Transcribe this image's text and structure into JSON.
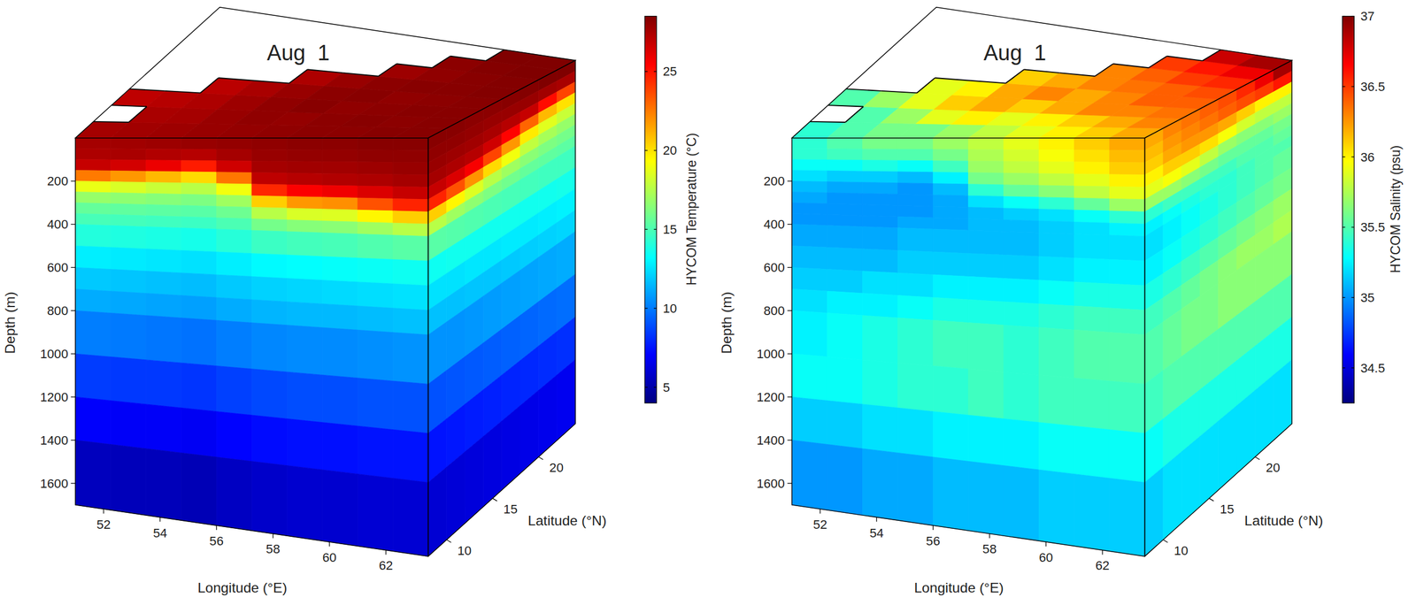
{
  "chart_data": [
    {
      "type": "cube_heatmap",
      "title": "Aug  1",
      "xlabel": "Longitude (°E)",
      "ylabel": "Latitude (°N)",
      "zlabel": "Depth (m)",
      "xlim": [
        51,
        63.5
      ],
      "xticks": [
        52,
        54,
        56,
        58,
        60,
        62
      ],
      "ylim": [
        8,
        24
      ],
      "yticks": [
        10,
        15,
        20
      ],
      "zlim": [
        0,
        1700
      ],
      "zticks": [
        200,
        400,
        600,
        800,
        1000,
        1200,
        1400,
        1600
      ],
      "lon_edges": [
        51,
        52.25,
        53.5,
        54.75,
        56,
        57.25,
        58.5,
        59.75,
        61,
        62.25,
        63.5
      ],
      "lat_edges": [
        8,
        10,
        12,
        14,
        16,
        18,
        20,
        22,
        24
      ],
      "depth_edges": [
        0,
        50,
        100,
        150,
        200,
        250,
        300,
        350,
        400,
        500,
        600,
        700,
        800,
        1000,
        1200,
        1400,
        1700
      ],
      "surface": [
        [
          27.6,
          27.7,
          27.8,
          27.9,
          28.0,
          28.1,
          28.2,
          28.2,
          28.3,
          28.3
        ],
        [
          null,
          27.5,
          27.6,
          27.9,
          28.1,
          28.0,
          28.2,
          28.3,
          28.2,
          28.3
        ],
        [
          27.0,
          27.2,
          27.4,
          27.8,
          28.1,
          28.3,
          28.1,
          28.2,
          28.3,
          28.3
        ],
        [
          null,
          null,
          27.1,
          27.5,
          27.9,
          28.2,
          28.3,
          28.1,
          28.2,
          28.3
        ],
        [
          null,
          null,
          null,
          null,
          27.4,
          27.9,
          28.2,
          28.3,
          28.3,
          28.4
        ],
        [
          null,
          null,
          null,
          null,
          null,
          null,
          27.8,
          28.1,
          28.3,
          28.4
        ],
        [
          null,
          null,
          null,
          null,
          null,
          null,
          null,
          28.2,
          28.4,
          28.5
        ],
        [
          null,
          null,
          null,
          null,
          null,
          null,
          null,
          null,
          28.6,
          28.7
        ]
      ],
      "south_face": [
        [
          27.6,
          27.4,
          26.8,
          22.5,
          18.8,
          16.8,
          15.6,
          14.9,
          14.0,
          12.8,
          11.9,
          11.2,
          10.1,
          8.5,
          7.0,
          5.5
        ],
        [
          27.7,
          27.5,
          26.5,
          21.8,
          18.4,
          16.6,
          15.5,
          14.8,
          13.9,
          12.7,
          11.8,
          11.1,
          10.0,
          8.4,
          6.9,
          5.4
        ],
        [
          27.8,
          27.3,
          25.9,
          21.0,
          18.0,
          16.4,
          15.4,
          14.7,
          13.8,
          12.6,
          11.7,
          11.0,
          9.9,
          8.4,
          6.9,
          5.4
        ],
        [
          27.9,
          27.2,
          24.8,
          20.2,
          17.6,
          16.2,
          15.3,
          14.6,
          13.7,
          12.5,
          11.6,
          10.9,
          9.8,
          8.3,
          6.8,
          5.3
        ],
        [
          28.0,
          27.6,
          26.6,
          22.6,
          19.0,
          17.0,
          15.8,
          15.0,
          14.1,
          12.8,
          11.9,
          11.2,
          10.1,
          8.6,
          7.1,
          5.6
        ],
        [
          28.1,
          27.9,
          27.6,
          27.0,
          24.5,
          20.5,
          17.6,
          16.0,
          14.6,
          13.1,
          12.1,
          11.4,
          10.3,
          8.8,
          7.3,
          5.8
        ],
        [
          28.2,
          28.0,
          27.7,
          27.2,
          25.5,
          21.8,
          18.4,
          16.4,
          14.8,
          13.2,
          12.2,
          11.5,
          10.4,
          8.9,
          7.4,
          5.9
        ],
        [
          28.2,
          28.0,
          27.7,
          27.3,
          25.8,
          22.0,
          18.5,
          16.5,
          14.9,
          13.3,
          12.3,
          11.5,
          10.4,
          8.9,
          7.4,
          5.9
        ],
        [
          28.3,
          28.1,
          27.8,
          27.4,
          26.3,
          23.5,
          19.5,
          17.0,
          15.1,
          13.4,
          12.4,
          11.6,
          10.5,
          9.0,
          7.5,
          6.0
        ],
        [
          28.3,
          28.1,
          27.9,
          27.6,
          26.8,
          24.6,
          20.5,
          17.6,
          15.3,
          13.5,
          12.5,
          11.7,
          10.6,
          9.0,
          7.5,
          6.0
        ]
      ],
      "east_face": [
        [
          28.3,
          28.1,
          27.9,
          27.6,
          26.8,
          24.6,
          20.5,
          17.6,
          15.3,
          13.5,
          12.5,
          11.7,
          10.6,
          9.0,
          7.5,
          6.0
        ],
        [
          28.3,
          28.1,
          27.8,
          27.4,
          26.3,
          23.5,
          19.5,
          17.0,
          15.2,
          13.6,
          12.5,
          11.7,
          10.6,
          9.1,
          7.6,
          6.1
        ],
        [
          28.2,
          28.0,
          27.7,
          27.2,
          25.6,
          21.9,
          18.5,
          16.6,
          15.1,
          13.6,
          12.6,
          11.8,
          10.7,
          9.2,
          7.7,
          6.2
        ],
        [
          28.2,
          27.9,
          27.5,
          26.6,
          23.8,
          20.2,
          17.6,
          16.2,
          15.0,
          13.6,
          12.6,
          11.8,
          10.8,
          9.3,
          7.8,
          6.3
        ],
        [
          28.3,
          27.9,
          27.2,
          25.4,
          21.8,
          19.0,
          17.0,
          15.9,
          14.9,
          13.6,
          12.7,
          11.9,
          10.9,
          9.4,
          7.9,
          6.4
        ],
        [
          28.4,
          27.9,
          26.8,
          23.0,
          19.8,
          17.8,
          16.5,
          15.6,
          14.8,
          13.6,
          12.7,
          12.0,
          11.0,
          9.5,
          8.0,
          6.5
        ],
        [
          28.5,
          27.7,
          25.2,
          21.0,
          18.6,
          17.2,
          16.2,
          15.5,
          14.7,
          13.6,
          12.8,
          12.1,
          11.1,
          9.6,
          8.1,
          6.6
        ],
        [
          28.7,
          27.5,
          23.8,
          20.0,
          18.0,
          16.8,
          16.0,
          15.4,
          14.7,
          13.7,
          12.9,
          12.2,
          11.2,
          9.7,
          8.2,
          6.7
        ]
      ],
      "colorbar": {
        "label": "HYCOM Temperature (°C)",
        "lim": [
          4,
          28.5
        ],
        "ticks": [
          5,
          10,
          15,
          20,
          25
        ]
      }
    },
    {
      "type": "cube_heatmap",
      "title": "Aug  1",
      "xlabel": "Longitude (°E)",
      "ylabel": "Latitude (°N)",
      "zlabel": "Depth (m)",
      "xlim": [
        51,
        63.5
      ],
      "xticks": [
        52,
        54,
        56,
        58,
        60,
        62
      ],
      "ylim": [
        8,
        24
      ],
      "yticks": [
        10,
        15,
        20
      ],
      "zlim": [
        0,
        1700
      ],
      "zticks": [
        200,
        400,
        600,
        800,
        1000,
        1200,
        1400,
        1600
      ],
      "lon_edges": [
        51,
        52.25,
        53.5,
        54.75,
        56,
        57.25,
        58.5,
        59.75,
        61,
        62.25,
        63.5
      ],
      "lat_edges": [
        8,
        10,
        12,
        14,
        16,
        18,
        20,
        22,
        24
      ],
      "depth_edges": [
        0,
        50,
        100,
        150,
        200,
        250,
        300,
        350,
        400,
        500,
        600,
        700,
        800,
        1000,
        1200,
        1400,
        1700
      ],
      "surface": [
        [
          35.4,
          35.5,
          35.6,
          35.6,
          35.7,
          35.8,
          35.9,
          36.0,
          36.1,
          36.2
        ],
        [
          null,
          35.5,
          35.7,
          35.9,
          36.0,
          35.9,
          36.0,
          36.1,
          36.2,
          36.3
        ],
        [
          35.5,
          35.7,
          35.9,
          36.1,
          36.2,
          36.1,
          36.2,
          36.3,
          36.3,
          36.35
        ],
        [
          null,
          null,
          35.9,
          36.0,
          36.2,
          36.3,
          36.2,
          36.3,
          36.4,
          36.4
        ],
        [
          null,
          null,
          null,
          null,
          36.1,
          36.2,
          36.3,
          36.35,
          36.4,
          36.45
        ],
        [
          null,
          null,
          null,
          null,
          null,
          null,
          36.3,
          36.4,
          36.5,
          36.55
        ],
        [
          null,
          null,
          null,
          null,
          null,
          null,
          null,
          36.5,
          36.6,
          36.7
        ],
        [
          null,
          null,
          null,
          null,
          null,
          null,
          null,
          null,
          36.8,
          36.9
        ]
      ],
      "south_face": [
        [
          35.4,
          35.4,
          35.3,
          35.2,
          35.1,
          35.05,
          35.0,
          35.0,
          35.05,
          35.1,
          35.15,
          35.2,
          35.25,
          35.3,
          35.15,
          35.0
        ],
        [
          35.5,
          35.45,
          35.3,
          35.15,
          35.05,
          35.0,
          35.0,
          35.0,
          35.05,
          35.1,
          35.15,
          35.25,
          35.3,
          35.3,
          35.15,
          35.0
        ],
        [
          35.6,
          35.5,
          35.35,
          35.15,
          35.05,
          35.0,
          35.0,
          35.0,
          35.05,
          35.1,
          35.2,
          35.25,
          35.35,
          35.35,
          35.2,
          35.05
        ],
        [
          35.6,
          35.5,
          35.3,
          35.1,
          35.0,
          35.0,
          35.0,
          35.05,
          35.1,
          35.15,
          35.2,
          35.3,
          35.4,
          35.4,
          35.2,
          35.05
        ],
        [
          35.7,
          35.6,
          35.45,
          35.25,
          35.1,
          35.05,
          35.05,
          35.05,
          35.1,
          35.15,
          35.25,
          35.35,
          35.45,
          35.4,
          35.25,
          35.1
        ],
        [
          35.8,
          35.75,
          35.7,
          35.6,
          35.4,
          35.2,
          35.1,
          35.1,
          35.1,
          35.15,
          35.25,
          35.35,
          35.45,
          35.45,
          35.25,
          35.1
        ],
        [
          35.9,
          35.85,
          35.8,
          35.7,
          35.55,
          35.3,
          35.15,
          35.1,
          35.1,
          35.15,
          35.25,
          35.35,
          35.4,
          35.4,
          35.25,
          35.1
        ],
        [
          36.0,
          35.95,
          35.9,
          35.8,
          35.65,
          35.4,
          35.2,
          35.15,
          35.15,
          35.2,
          35.3,
          35.4,
          35.45,
          35.45,
          35.3,
          35.15
        ],
        [
          36.1,
          36.05,
          36.0,
          35.9,
          35.8,
          35.55,
          35.3,
          35.2,
          35.2,
          35.25,
          35.35,
          35.45,
          35.5,
          35.45,
          35.3,
          35.15
        ],
        [
          36.2,
          36.15,
          36.1,
          36.0,
          35.9,
          35.7,
          35.4,
          35.25,
          35.2,
          35.25,
          35.35,
          35.45,
          35.5,
          35.45,
          35.3,
          35.15
        ]
      ],
      "east_face": [
        [
          36.2,
          36.15,
          36.1,
          36.0,
          35.9,
          35.7,
          35.4,
          35.25,
          35.2,
          35.25,
          35.35,
          35.45,
          35.5,
          35.45,
          35.3,
          35.15
        ],
        [
          36.3,
          36.25,
          36.2,
          36.1,
          35.95,
          35.7,
          35.45,
          35.3,
          35.25,
          35.3,
          35.4,
          35.5,
          35.55,
          35.5,
          35.35,
          35.2
        ],
        [
          36.35,
          36.3,
          36.25,
          36.1,
          35.9,
          35.65,
          35.45,
          35.35,
          35.3,
          35.35,
          35.45,
          35.55,
          35.6,
          35.5,
          35.35,
          35.2
        ],
        [
          36.4,
          36.35,
          36.25,
          36.05,
          35.8,
          35.6,
          35.45,
          35.4,
          35.35,
          35.4,
          35.5,
          35.6,
          35.6,
          35.5,
          35.35,
          35.2
        ],
        [
          36.45,
          36.4,
          36.2,
          35.95,
          35.7,
          35.55,
          35.45,
          35.4,
          35.4,
          35.45,
          35.55,
          35.65,
          35.65,
          35.5,
          35.35,
          35.2
        ],
        [
          36.55,
          36.45,
          36.1,
          35.85,
          35.65,
          35.55,
          35.5,
          35.45,
          35.45,
          35.5,
          35.6,
          35.7,
          35.65,
          35.5,
          35.35,
          35.2
        ],
        [
          36.7,
          36.5,
          36.0,
          35.8,
          35.65,
          35.55,
          35.5,
          35.5,
          35.5,
          35.55,
          35.65,
          35.7,
          35.65,
          35.5,
          35.35,
          35.2
        ],
        [
          36.9,
          36.6,
          36.0,
          35.8,
          35.7,
          35.6,
          35.55,
          35.5,
          35.55,
          35.6,
          35.7,
          35.75,
          35.65,
          35.5,
          35.35,
          35.2
        ]
      ],
      "colorbar": {
        "label": "HYCOM Salinity (psu)",
        "lim": [
          34.25,
          37
        ],
        "ticks": [
          34.5,
          35,
          35.5,
          36,
          36.5,
          37
        ]
      }
    }
  ]
}
